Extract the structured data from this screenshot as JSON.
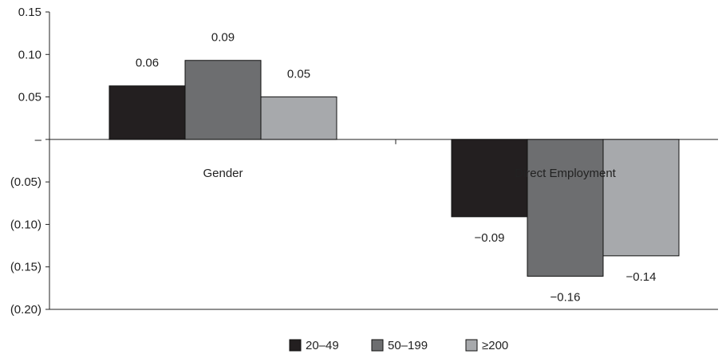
{
  "chart_data": {
    "type": "bar",
    "categories": [
      "Gender",
      "Direct Employment"
    ],
    "series": [
      {
        "name": "20–49",
        "color": "#231f20",
        "values": [
          0.063,
          -0.091
        ],
        "labels": [
          "0.06",
          "−0.09"
        ]
      },
      {
        "name": "50–199",
        "color": "#6d6e70",
        "values": [
          0.093,
          -0.161
        ],
        "labels": [
          "0.09",
          "−0.16"
        ]
      },
      {
        "name": "≥200",
        "color": "#a7a9ac",
        "values": [
          0.05,
          -0.137
        ],
        "labels": [
          "0.05",
          "−0.14"
        ]
      }
    ],
    "ylim": [
      -0.2,
      0.15
    ],
    "yticks": [
      0.15,
      0.1,
      0.05,
      0,
      -0.05,
      -0.1,
      -0.15,
      -0.2
    ],
    "ytick_labels": [
      "0.15",
      "0.10",
      "0.05",
      "–",
      "(0.05)",
      "(0.10)",
      "(0.15)",
      "(0.20)"
    ],
    "grid": false,
    "legend_position": "bottom"
  }
}
